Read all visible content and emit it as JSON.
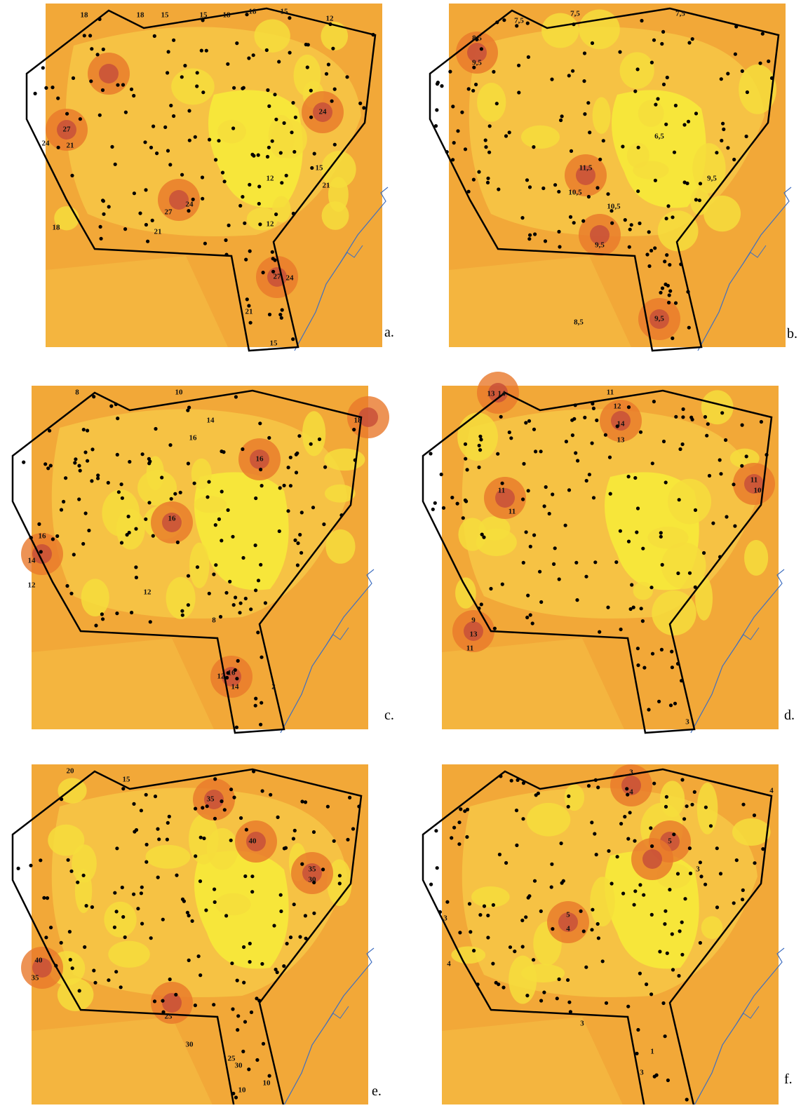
{
  "panels": [
    {
      "letter": "a.",
      "labels": [
        "18",
        "18",
        "15",
        "15",
        "18",
        "18",
        "15",
        "12",
        "27",
        "24",
        "21",
        "24",
        "27",
        "21",
        "12",
        "15",
        "21",
        "27",
        "24",
        "21",
        "18",
        "15",
        "12",
        "24"
      ]
    },
    {
      "letter": "b.",
      "labels": [
        "7,5",
        "7,5",
        "7,5",
        "8,5",
        "9,5",
        "6,5",
        "11,5",
        "10,5",
        "10,5",
        "9,5",
        "8,5",
        "9,5",
        "9,5"
      ]
    },
    {
      "letter": "c.",
      "labels": [
        "8",
        "10",
        "14",
        "16",
        "16",
        "14",
        "12",
        "16",
        "12",
        "16",
        "14",
        "12",
        "2",
        "8",
        "18",
        "16"
      ]
    },
    {
      "letter": "d.",
      "labels": [
        "13",
        "14",
        "11",
        "12",
        "14",
        "13",
        "11",
        "11",
        "9",
        "13",
        "11",
        "11",
        "10",
        "3"
      ]
    },
    {
      "letter": "e.",
      "labels": [
        "20",
        "15",
        "35",
        "40",
        "35",
        "30",
        "40",
        "35",
        "25",
        "30",
        "25",
        "30",
        "10",
        "10"
      ]
    },
    {
      "letter": "f.",
      "labels": [
        "3",
        "4",
        "4",
        "5",
        "3",
        "5",
        "4",
        "3",
        "4",
        "3",
        "1",
        "3"
      ]
    }
  ]
}
